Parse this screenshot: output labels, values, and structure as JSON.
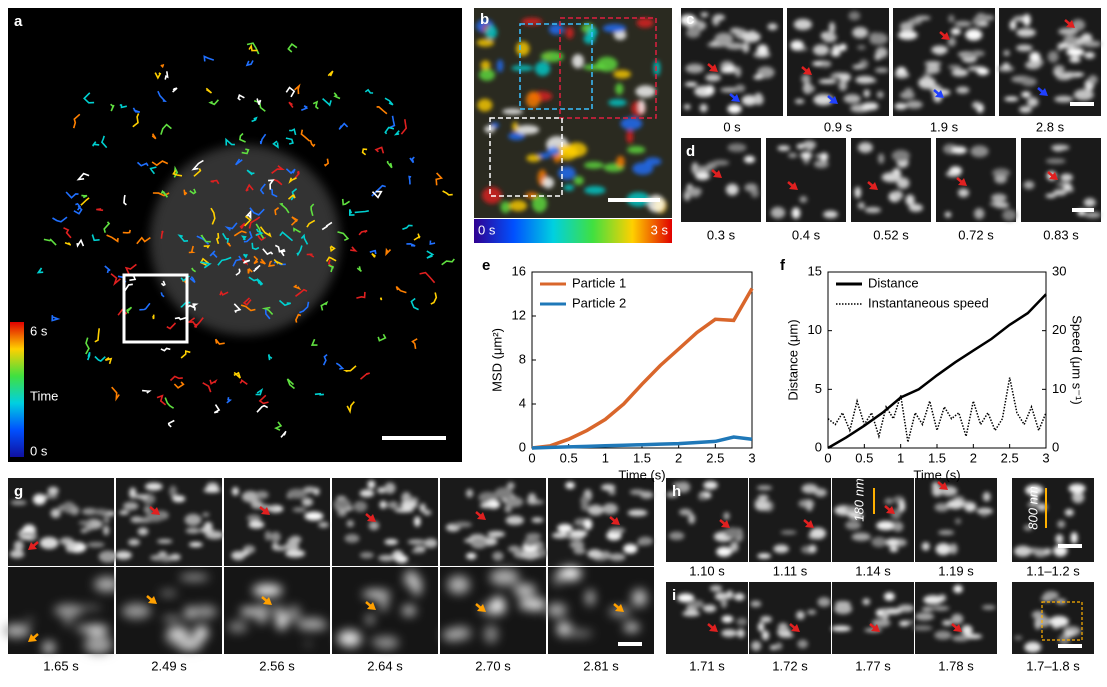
{
  "panels": {
    "a": {
      "label": "a",
      "colorbar": {
        "top": "6 s",
        "middle": "Time",
        "bottom": "0 s"
      }
    },
    "b": {
      "label": "b",
      "colorbar": {
        "left": "0 s",
        "right": "3 s"
      }
    },
    "c": {
      "label": "c",
      "times": [
        "0 s",
        "0.9 s",
        "1.9 s",
        "2.8 s"
      ]
    },
    "d": {
      "label": "d",
      "times": [
        "0.3 s",
        "0.4 s",
        "0.52 s",
        "0.72 s",
        "0.83 s"
      ]
    },
    "g": {
      "label": "g",
      "times": [
        "1.65 s",
        "2.49 s",
        "2.56 s",
        "2.64 s",
        "2.70 s",
        "2.81 s"
      ]
    },
    "h": {
      "label": "h",
      "times": [
        "1.10 s",
        "1.11 s",
        "1.14 s",
        "1.19 s",
        "1.1–1.2 s"
      ],
      "annotations": [
        "180 nm",
        "800 nm"
      ]
    },
    "i": {
      "label": "i",
      "times": [
        "1.71 s",
        "1.72 s",
        "1.77 s",
        "1.78 s",
        "1.7–1.8 s"
      ]
    }
  },
  "chart_data": [
    {
      "type": "line",
      "label": "e",
      "x_label": "Time (s)",
      "y_label": "MSD (μm²)",
      "x": [
        0,
        0.25,
        0.5,
        0.75,
        1,
        1.25,
        1.5,
        1.75,
        2,
        2.25,
        2.5,
        2.75,
        3
      ],
      "series": [
        {
          "name": "Particle 1",
          "color": "#d9662b",
          "values": [
            0,
            0.2,
            0.8,
            1.6,
            2.6,
            4.0,
            5.8,
            7.5,
            9.0,
            10.5,
            11.7,
            11.6,
            14.5
          ]
        },
        {
          "name": "Particle 2",
          "color": "#1f78b8",
          "values": [
            0,
            0.05,
            0.1,
            0.15,
            0.2,
            0.25,
            0.3,
            0.35,
            0.4,
            0.5,
            0.6,
            1.0,
            0.8
          ]
        }
      ],
      "xlim": [
        0,
        3
      ],
      "xticks": [
        0,
        0.5,
        1,
        1.5,
        2,
        2.5,
        3
      ],
      "ylim": [
        0,
        16
      ],
      "yticks": [
        0,
        4,
        8,
        12,
        16
      ],
      "legend": "upper left"
    },
    {
      "type": "line",
      "label": "f",
      "x_label": "Time (s)",
      "y_label": "Distance (μm)",
      "y2_label": "Speed (μm s⁻¹)",
      "series": [
        {
          "name": "Distance",
          "color": "#000000",
          "style": "solid",
          "x": [
            0,
            0.25,
            0.5,
            0.75,
            1,
            1.25,
            1.5,
            1.75,
            2,
            2.25,
            2.5,
            2.75,
            3
          ],
          "values": [
            0,
            0.9,
            1.9,
            3.0,
            4.3,
            5.0,
            6.2,
            7.3,
            8.3,
            9.3,
            10.5,
            11.5,
            13.1
          ]
        },
        {
          "name": "Instantaneous speed",
          "color": "#000000",
          "style": "dotted",
          "axis": "y2",
          "x": [
            0,
            0.1,
            0.2,
            0.3,
            0.4,
            0.5,
            0.6,
            0.7,
            0.8,
            0.9,
            1,
            1.1,
            1.2,
            1.3,
            1.4,
            1.5,
            1.6,
            1.7,
            1.8,
            1.9,
            2,
            2.1,
            2.2,
            2.3,
            2.4,
            2.5,
            2.6,
            2.7,
            2.8,
            2.9,
            3
          ],
          "values": [
            5,
            4,
            6,
            3,
            8,
            4,
            6,
            2,
            7,
            5,
            9,
            1,
            6,
            4,
            8,
            3,
            7,
            5,
            6,
            2,
            8,
            4,
            6,
            3,
            5,
            12,
            6,
            4,
            7,
            3,
            6
          ]
        }
      ],
      "xlim": [
        0,
        3
      ],
      "xticks": [
        0,
        0.5,
        1,
        1.5,
        2,
        2.5,
        3
      ],
      "ylim": [
        0,
        15
      ],
      "yticks": [
        0,
        5,
        10,
        15
      ],
      "y2lim": [
        0,
        30
      ],
      "y2ticks": [
        0,
        10,
        20,
        30
      ],
      "legend": "upper left"
    }
  ]
}
